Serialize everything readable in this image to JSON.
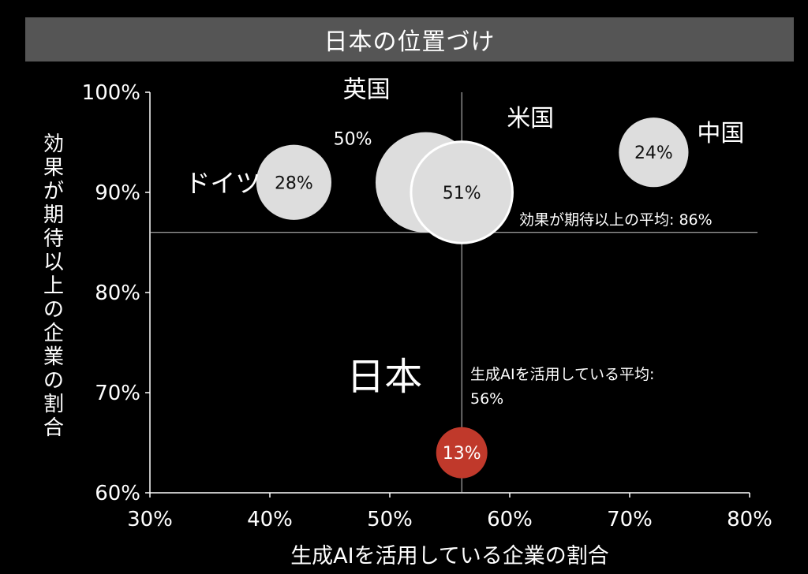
{
  "title": "日本の位置づけ",
  "colors": {
    "background": "#000000",
    "title_bar": "#555555",
    "bubble": "#dddddd",
    "japan_bubble": "#c0392b",
    "axis": "#ffffff"
  },
  "chart_data": {
    "type": "scatter",
    "xlabel": "生成AIを活用している企業の割合",
    "ylabel": "効果が期待以上の企業の割合",
    "xlim": [
      30,
      80
    ],
    "ylim": [
      60,
      100
    ],
    "x_ticks": [
      "30%",
      "40%",
      "50%",
      "60%",
      "70%",
      "80%"
    ],
    "y_ticks": [
      "60%",
      "70%",
      "80%",
      "90%",
      "100%"
    ],
    "grid": false,
    "reference_lines": [
      {
        "axis": "y",
        "value": 86,
        "label": "効果が期待以上の平均: 86%"
      },
      {
        "axis": "x",
        "value": 56,
        "label": "生成AIを活用している平均:",
        "label2": "56%"
      }
    ],
    "points": [
      {
        "name": "ドイツ",
        "x": 42,
        "y": 91,
        "size_value": "28%",
        "size": 28
      },
      {
        "name": "英国",
        "x": 53,
        "y": 91,
        "size_value": "50%",
        "size": 50
      },
      {
        "name": "米国",
        "x": 56,
        "y": 90,
        "size_value": "51%",
        "size": 51
      },
      {
        "name": "中国",
        "x": 72,
        "y": 94,
        "size_value": "24%",
        "size": 24
      },
      {
        "name": "日本",
        "x": 56,
        "y": 64,
        "size_value": "13%",
        "size": 13
      }
    ]
  }
}
